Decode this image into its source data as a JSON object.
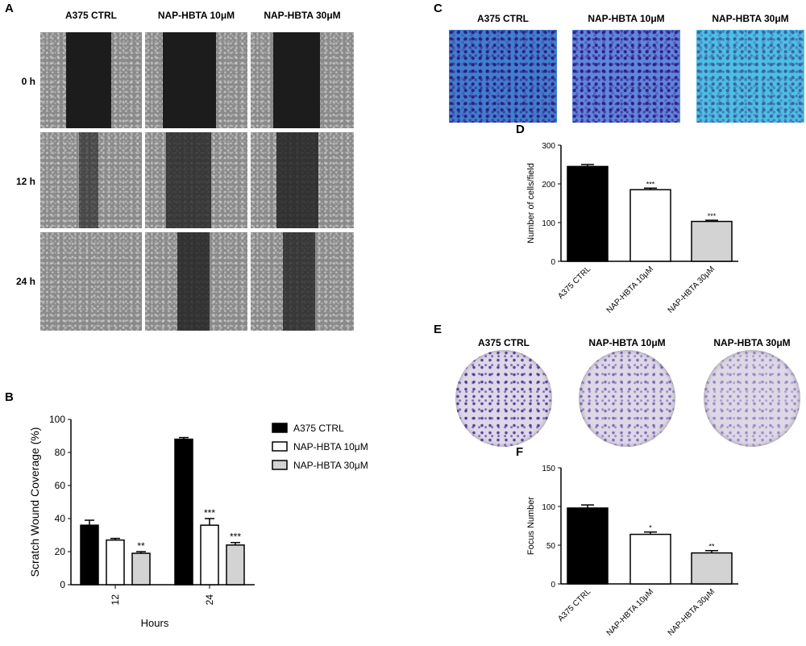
{
  "panels": {
    "a": "A",
    "b": "B",
    "c": "C",
    "d": "D",
    "e": "E",
    "f": "F"
  },
  "groups": [
    "A375 CTRL",
    "NAP-HBTA 10μM",
    "NAP-HBTA 30μM"
  ],
  "wound_rows": [
    "0 h",
    "12 h",
    "24 h"
  ],
  "colors": {
    "ctrl": "#000000",
    "nap10": "#ffffff",
    "nap30": "#d3d3d3",
    "crystal_violet": "#5a3fb0",
    "transwell_bg": "#44b8de"
  },
  "chart_data": [
    {
      "id": "B",
      "type": "bar",
      "categories": [
        "12",
        "24"
      ],
      "xlabel": "Hours",
      "ylabel": "Scratch Wound Coverage (%)",
      "ylim": [
        0,
        100
      ],
      "yticks": [
        "0",
        "20",
        "40",
        "60",
        "80",
        "100"
      ],
      "series": [
        {
          "name": "A375 CTRL",
          "values": [
            36,
            88
          ],
          "errors": [
            3,
            1
          ],
          "sig": [
            "",
            ""
          ]
        },
        {
          "name": "NAP-HBTA 10μM",
          "values": [
            27,
            36
          ],
          "errors": [
            1,
            4
          ],
          "sig": [
            "",
            "***"
          ]
        },
        {
          "name": "NAP-HBTA 30μM",
          "values": [
            19,
            24
          ],
          "errors": [
            1,
            1.5
          ],
          "sig": [
            "**",
            "***"
          ]
        }
      ],
      "legend_placement": "right"
    },
    {
      "id": "D",
      "type": "bar",
      "categories": [
        "A375 CTRL",
        "NAP-HBTA 10μM",
        "NAP-HBTA 30μM"
      ],
      "ylabel": "Number of cells/field",
      "ylim": [
        0,
        300
      ],
      "yticks": [
        "0",
        "100",
        "200",
        "300"
      ],
      "values": [
        245,
        185,
        103
      ],
      "errors": [
        5,
        4,
        3
      ],
      "sig": [
        "",
        "***",
        "***"
      ]
    },
    {
      "id": "F",
      "type": "bar",
      "categories": [
        "A375 CTRL",
        "NAP-HBTA 10μM",
        "NAP-HBTA 30μM"
      ],
      "ylabel": "Focus Number",
      "ylim": [
        0,
        150
      ],
      "yticks": [
        "0",
        "50",
        "100",
        "150"
      ],
      "values": [
        98,
        64,
        40
      ],
      "errors": [
        4,
        3,
        3
      ],
      "sig": [
        "",
        "*",
        "**"
      ]
    }
  ]
}
